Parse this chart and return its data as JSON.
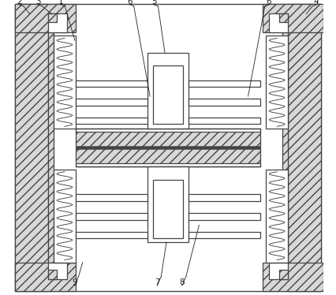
{
  "lc": "#444444",
  "hfc": "#d8d8d8",
  "white": "#ffffff",
  "lw": 0.9,
  "fs": 7.5,
  "lbcolor": "#222222",
  "xlim": [
    0,
    10.0
  ],
  "ylim": [
    0,
    9.5
  ],
  "figsize": [
    4.26,
    3.74
  ],
  "dpi": 100
}
